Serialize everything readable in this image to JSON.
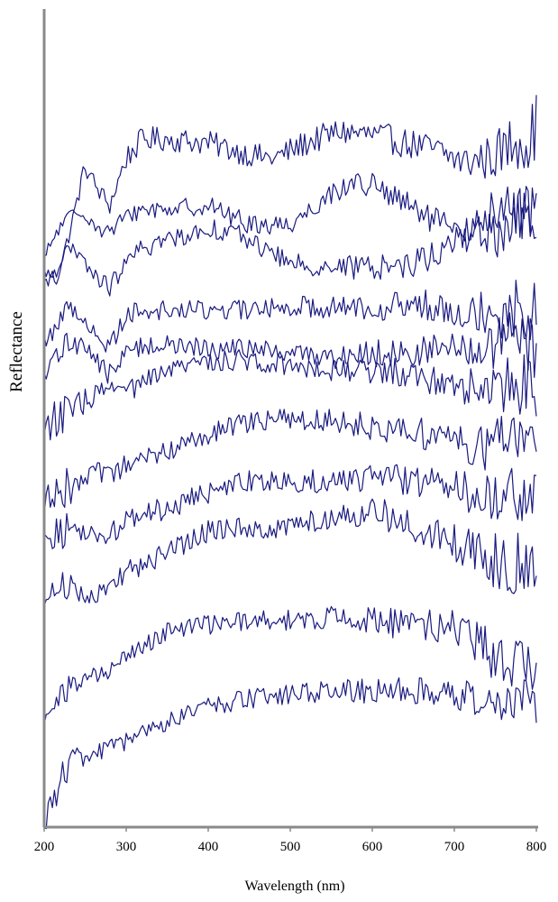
{
  "chart_data": {
    "type": "line",
    "title": "",
    "xlabel": "Wavelength (nm)",
    "ylabel": "Reflectance",
    "xlim": [
      200,
      800
    ],
    "x_ticks": [
      200,
      300,
      400,
      500,
      600,
      700,
      800
    ],
    "y_ticks": [],
    "grid": false,
    "legend": "none",
    "line_color": "#1a1a80",
    "series": [
      {
        "x": [
          200,
          215,
          230,
          250,
          265,
          280,
          300,
          320,
          350,
          400,
          450,
          480,
          520,
          560,
          600,
          640,
          680,
          710,
          740,
          760,
          780,
          790,
          800
        ],
        "y": [
          0.715,
          0.705,
          0.76,
          0.85,
          0.82,
          0.8,
          0.86,
          0.885,
          0.885,
          0.88,
          0.865,
          0.86,
          0.88,
          0.895,
          0.89,
          0.88,
          0.87,
          0.855,
          0.86,
          0.87,
          0.89,
          0.88,
          0.905
        ],
        "noise": [
          0.005,
          0.008,
          0.006,
          0.008,
          0.008,
          0.008,
          0.01,
          0.01,
          0.01,
          0.01,
          0.01,
          0.01,
          0.011,
          0.011,
          0.012,
          0.012,
          0.013,
          0.014,
          0.018,
          0.022,
          0.026,
          0.026,
          0.026
        ]
      },
      {
        "x": [
          200,
          215,
          230,
          250,
          265,
          280,
          300,
          320,
          350,
          400,
          450,
          500,
          550,
          580,
          600,
          650,
          700,
          730,
          750,
          770,
          790,
          800
        ],
        "y": [
          0.73,
          0.765,
          0.785,
          0.79,
          0.77,
          0.765,
          0.785,
          0.795,
          0.795,
          0.8,
          0.775,
          0.775,
          0.815,
          0.83,
          0.825,
          0.795,
          0.765,
          0.765,
          0.76,
          0.78,
          0.79,
          0.77
        ],
        "noise": [
          0.006,
          0.007,
          0.006,
          0.006,
          0.006,
          0.007,
          0.007,
          0.007,
          0.007,
          0.008,
          0.008,
          0.008,
          0.009,
          0.01,
          0.01,
          0.011,
          0.012,
          0.016,
          0.018,
          0.024,
          0.024,
          0.024
        ]
      },
      {
        "x": [
          200,
          215,
          230,
          250,
          265,
          280,
          300,
          320,
          350,
          400,
          430,
          450,
          500,
          550,
          600,
          650,
          700,
          730,
          750,
          770,
          790,
          800
        ],
        "y": [
          0.695,
          0.72,
          0.745,
          0.725,
          0.705,
          0.695,
          0.725,
          0.745,
          0.755,
          0.77,
          0.765,
          0.755,
          0.725,
          0.72,
          0.72,
          0.725,
          0.75,
          0.775,
          0.79,
          0.795,
          0.79,
          0.795
        ],
        "noise": [
          0.006,
          0.008,
          0.006,
          0.007,
          0.007,
          0.008,
          0.007,
          0.008,
          0.008,
          0.008,
          0.008,
          0.008,
          0.008,
          0.009,
          0.01,
          0.011,
          0.013,
          0.016,
          0.02,
          0.024,
          0.024,
          0.024
        ]
      },
      {
        "x": [
          200,
          215,
          230,
          250,
          265,
          280,
          300,
          320,
          350,
          400,
          450,
          500,
          550,
          600,
          650,
          700,
          740,
          760,
          780,
          800
        ],
        "y": [
          0.625,
          0.645,
          0.67,
          0.655,
          0.625,
          0.62,
          0.66,
          0.665,
          0.665,
          0.665,
          0.665,
          0.67,
          0.67,
          0.67,
          0.67,
          0.67,
          0.665,
          0.665,
          0.665,
          0.675
        ],
        "noise": [
          0.006,
          0.01,
          0.008,
          0.008,
          0.008,
          0.01,
          0.008,
          0.008,
          0.008,
          0.008,
          0.008,
          0.008,
          0.01,
          0.011,
          0.013,
          0.015,
          0.02,
          0.026,
          0.028,
          0.028
        ]
      },
      {
        "x": [
          200,
          215,
          230,
          250,
          265,
          280,
          300,
          320,
          350,
          400,
          450,
          500,
          550,
          600,
          650,
          700,
          740,
          760,
          780,
          800
        ],
        "y": [
          0.575,
          0.605,
          0.625,
          0.62,
          0.6,
          0.58,
          0.61,
          0.62,
          0.62,
          0.615,
          0.615,
          0.61,
          0.605,
          0.61,
          0.61,
          0.615,
          0.615,
          0.62,
          0.625,
          0.615
        ],
        "noise": [
          0.006,
          0.012,
          0.01,
          0.008,
          0.008,
          0.01,
          0.008,
          0.008,
          0.008,
          0.008,
          0.008,
          0.008,
          0.01,
          0.011,
          0.013,
          0.015,
          0.02,
          0.024,
          0.026,
          0.026
        ]
      },
      {
        "x": [
          200,
          215,
          230,
          250,
          265,
          280,
          300,
          320,
          350,
          400,
          450,
          500,
          550,
          600,
          650,
          700,
          740,
          760,
          780,
          800
        ],
        "y": [
          0.515,
          0.525,
          0.53,
          0.55,
          0.555,
          0.565,
          0.56,
          0.57,
          0.585,
          0.6,
          0.6,
          0.595,
          0.59,
          0.585,
          0.585,
          0.57,
          0.565,
          0.565,
          0.57,
          0.57
        ],
        "noise": [
          0.008,
          0.02,
          0.016,
          0.01,
          0.009,
          0.009,
          0.008,
          0.009,
          0.009,
          0.009,
          0.009,
          0.009,
          0.01,
          0.011,
          0.013,
          0.015,
          0.02,
          0.024,
          0.026,
          0.026
        ]
      },
      {
        "x": [
          200,
          215,
          230,
          250,
          265,
          280,
          300,
          330,
          350,
          400,
          450,
          500,
          550,
          600,
          650,
          700,
          740,
          760,
          780,
          800
        ],
        "y": [
          0.41,
          0.445,
          0.435,
          0.445,
          0.455,
          0.45,
          0.465,
          0.475,
          0.485,
          0.505,
          0.52,
          0.525,
          0.525,
          0.515,
          0.51,
          0.495,
          0.49,
          0.495,
          0.5,
          0.49
        ],
        "noise": [
          0.008,
          0.02,
          0.016,
          0.01,
          0.009,
          0.009,
          0.009,
          0.009,
          0.009,
          0.009,
          0.009,
          0.009,
          0.01,
          0.011,
          0.013,
          0.015,
          0.02,
          0.024,
          0.026,
          0.026
        ]
      },
      {
        "x": [
          200,
          215,
          230,
          250,
          265,
          280,
          300,
          330,
          350,
          400,
          450,
          500,
          550,
          600,
          650,
          700,
          740,
          760,
          780,
          800
        ],
        "y": [
          0.385,
          0.375,
          0.385,
          0.375,
          0.38,
          0.375,
          0.395,
          0.405,
          0.41,
          0.43,
          0.445,
          0.445,
          0.445,
          0.45,
          0.445,
          0.44,
          0.42,
          0.425,
          0.43,
          0.425
        ],
        "noise": [
          0.008,
          0.016,
          0.012,
          0.01,
          0.009,
          0.009,
          0.009,
          0.009,
          0.009,
          0.009,
          0.009,
          0.009,
          0.01,
          0.011,
          0.013,
          0.015,
          0.02,
          0.024,
          0.026,
          0.026
        ]
      },
      {
        "x": [
          200,
          215,
          230,
          250,
          265,
          280,
          300,
          330,
          350,
          400,
          450,
          500,
          550,
          590,
          620,
          650,
          690,
          720,
          740,
          760,
          780,
          800
        ],
        "y": [
          0.29,
          0.31,
          0.31,
          0.3,
          0.3,
          0.305,
          0.33,
          0.34,
          0.355,
          0.38,
          0.385,
          0.385,
          0.4,
          0.405,
          0.4,
          0.385,
          0.37,
          0.355,
          0.345,
          0.34,
          0.34,
          0.345
        ],
        "noise": [
          0.008,
          0.014,
          0.01,
          0.008,
          0.008,
          0.008,
          0.009,
          0.009,
          0.009,
          0.009,
          0.009,
          0.009,
          0.01,
          0.011,
          0.013,
          0.014,
          0.015,
          0.018,
          0.02,
          0.024,
          0.026,
          0.026
        ]
      },
      {
        "x": [
          200,
          215,
          230,
          250,
          265,
          280,
          300,
          330,
          350,
          400,
          450,
          500,
          550,
          600,
          650,
          700,
          730,
          750,
          770,
          790,
          800
        ],
        "y": [
          0.135,
          0.16,
          0.18,
          0.19,
          0.195,
          0.2,
          0.22,
          0.24,
          0.25,
          0.26,
          0.265,
          0.265,
          0.27,
          0.265,
          0.26,
          0.255,
          0.235,
          0.22,
          0.21,
          0.205,
          0.2
        ],
        "noise": [
          0.006,
          0.012,
          0.01,
          0.008,
          0.008,
          0.008,
          0.008,
          0.008,
          0.008,
          0.008,
          0.008,
          0.009,
          0.009,
          0.011,
          0.013,
          0.015,
          0.018,
          0.02,
          0.024,
          0.024,
          0.024
        ]
      },
      {
        "x": [
          200,
          210,
          220,
          235,
          260,
          300,
          350,
          400,
          450,
          500,
          550,
          600,
          650,
          700,
          740,
          760,
          780,
          800
        ],
        "y": [
          0.0,
          0.04,
          0.065,
          0.085,
          0.095,
          0.11,
          0.135,
          0.155,
          0.165,
          0.17,
          0.175,
          0.175,
          0.175,
          0.17,
          0.165,
          0.16,
          0.165,
          0.165
        ],
        "noise": [
          0.004,
          0.02,
          0.016,
          0.01,
          0.008,
          0.008,
          0.008,
          0.008,
          0.008,
          0.008,
          0.009,
          0.01,
          0.011,
          0.012,
          0.016,
          0.02,
          0.022,
          0.022
        ]
      }
    ]
  }
}
